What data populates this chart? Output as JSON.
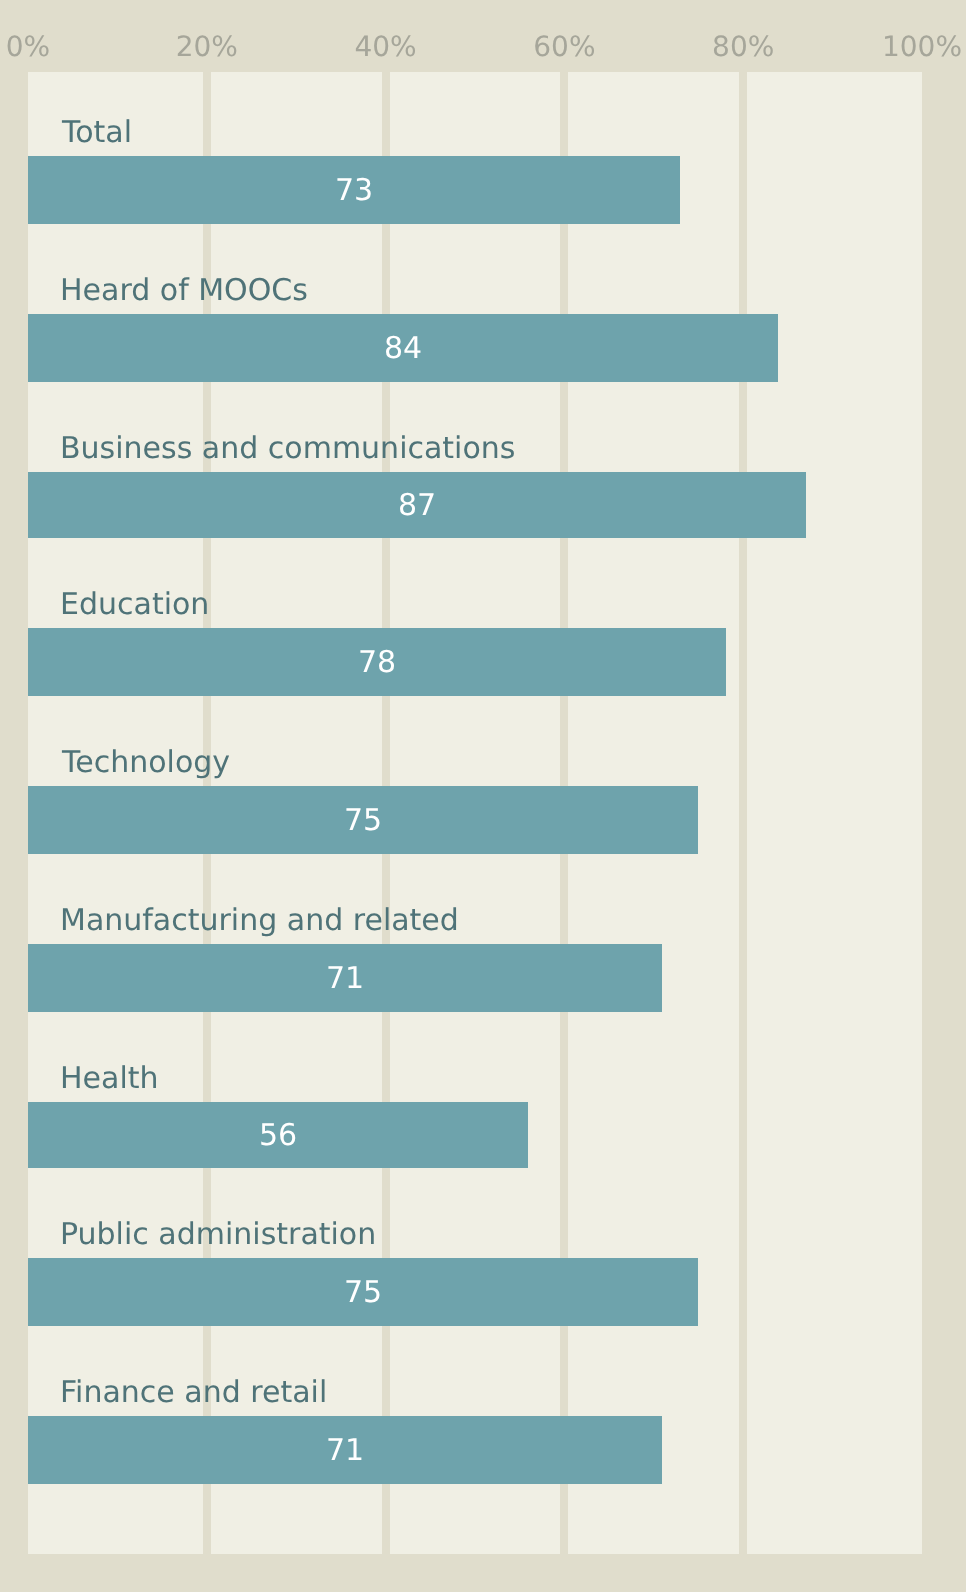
{
  "chart_data": {
    "type": "bar",
    "orientation": "horizontal",
    "categories": [
      "Total",
      "Heard of MOOCs",
      "Business and communications",
      "Education",
      "Technology",
      "Manufacturing and related",
      "Health",
      "Public administration",
      "Finance and retail"
    ],
    "values": [
      73,
      84,
      87,
      78,
      75,
      71,
      56,
      75,
      71
    ],
    "color": "#6ea3ac",
    "xlim": [
      0,
      100
    ],
    "xticks": [
      {
        "value": 0,
        "label": "0%"
      },
      {
        "value": 20,
        "label": "20%"
      },
      {
        "value": 40,
        "label": "40%"
      },
      {
        "value": 60,
        "label": "60%"
      },
      {
        "value": 80,
        "label": "80%"
      },
      {
        "value": 100,
        "label": "100%"
      }
    ],
    "grid": "x",
    "data_labels": true,
    "legend": false
  }
}
